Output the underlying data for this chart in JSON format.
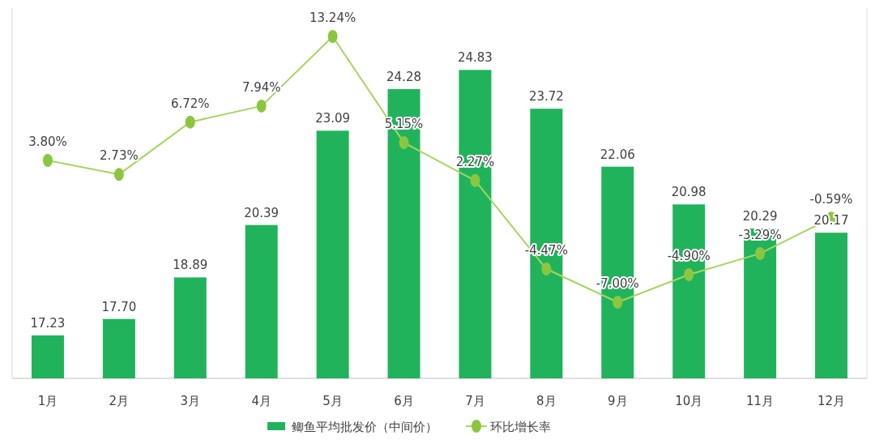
{
  "chart_data": {
    "type": "bar",
    "categories": [
      "1月",
      "2月",
      "3月",
      "4月",
      "5月",
      "6月",
      "7月",
      "8月",
      "9月",
      "10月",
      "11月",
      "12月"
    ],
    "series": [
      {
        "name": "鲫鱼平均批发价（中间价）",
        "color": "#21b35b",
        "values": [
          17.23,
          17.7,
          18.89,
          20.39,
          23.09,
          24.28,
          24.83,
          23.72,
          22.06,
          20.98,
          20.29,
          20.17
        ],
        "value_labels": [
          "17.23",
          "17.70",
          "18.89",
          "20.39",
          "23.09",
          "24.28",
          "24.83",
          "23.72",
          "22.06",
          "20.98",
          "20.29",
          "20.17"
        ]
      },
      {
        "name": "环比增长率",
        "type": "line",
        "axis": "y2",
        "color": "#a5d65f",
        "values": [
          3.8,
          2.73,
          6.72,
          7.94,
          13.24,
          5.15,
          2.27,
          -4.47,
          -7.0,
          -4.9,
          -3.29,
          -0.59
        ],
        "value_labels": [
          "3.80%",
          "2.73%",
          "6.72%",
          "7.94%",
          "13.24%",
          "5.15%",
          "2.27%",
          "-4.47%",
          "-7.00%",
          "-4.90%",
          "-3.29%",
          "-0.59%"
        ]
      }
    ],
    "ylim": [
      16,
      26.6
    ],
    "y2lim": [
      -12.8,
      15.4
    ],
    "marker": "circle",
    "legend": "bottom",
    "tick_labels": "x",
    "grid": false
  }
}
